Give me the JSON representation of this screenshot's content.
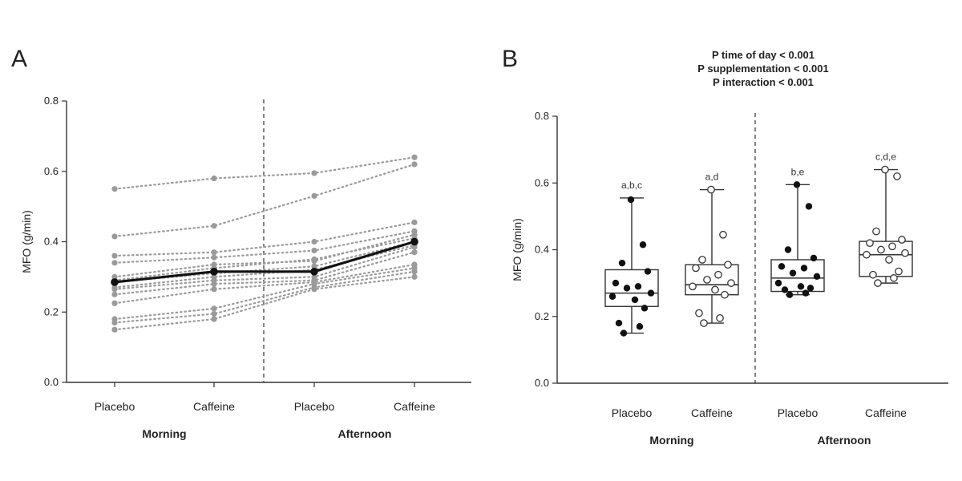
{
  "chart_data": [
    {
      "panel": "A",
      "type": "line",
      "ylabel": "MFO (g/min)",
      "ylim": [
        0.0,
        0.8
      ],
      "yticks": [
        "0.0",
        "0.2",
        "0.4",
        "0.6",
        "0.8"
      ],
      "categories": [
        "Placebo",
        "Caffeine",
        "Placebo",
        "Caffeine"
      ],
      "groups": [
        "Morning",
        "Afternoon"
      ],
      "mean_series": {
        "name": "Mean",
        "values": [
          0.285,
          0.315,
          0.315,
          0.4
        ]
      },
      "individual_series": [
        [
          0.55,
          0.58,
          0.595,
          0.64
        ],
        [
          0.415,
          0.445,
          0.53,
          0.62
        ],
        [
          0.36,
          0.37,
          0.4,
          0.455
        ],
        [
          0.34,
          0.355,
          0.375,
          0.43
        ],
        [
          0.3,
          0.335,
          0.345,
          0.42
        ],
        [
          0.29,
          0.325,
          0.35,
          0.41
        ],
        [
          0.285,
          0.31,
          0.33,
          0.4
        ],
        [
          0.27,
          0.3,
          0.32,
          0.39
        ],
        [
          0.265,
          0.29,
          0.3,
          0.385
        ],
        [
          0.25,
          0.28,
          0.29,
          0.37
        ],
        [
          0.225,
          0.265,
          0.285,
          0.335
        ],
        [
          0.18,
          0.21,
          0.28,
          0.325
        ],
        [
          0.17,
          0.195,
          0.27,
          0.315
        ],
        [
          0.15,
          0.18,
          0.265,
          0.3
        ]
      ]
    },
    {
      "panel": "B",
      "type": "box",
      "ylabel": "MFO (g/min)",
      "ylim": [
        0.0,
        0.8
      ],
      "yticks": [
        "0.0",
        "0.2",
        "0.4",
        "0.6",
        "0.8"
      ],
      "categories": [
        "Placebo",
        "Caffeine",
        "Placebo",
        "Caffeine"
      ],
      "groups": [
        "Morning",
        "Afternoon"
      ],
      "stats": [
        "P time of day < 0.001",
        "P supplementation < 0.001",
        "P interaction < 0.001"
      ],
      "boxes": [
        {
          "label": "Placebo",
          "group": "Morning",
          "annotation": "a,b,c",
          "filled": true,
          "min": 0.15,
          "q1": 0.23,
          "median": 0.27,
          "q3": 0.34,
          "max": 0.555,
          "points": [
            0.55,
            0.415,
            0.36,
            0.335,
            0.3,
            0.29,
            0.285,
            0.27,
            0.26,
            0.25,
            0.225,
            0.18,
            0.17,
            0.15
          ]
        },
        {
          "label": "Caffeine",
          "group": "Morning",
          "annotation": "a,d",
          "filled": false,
          "min": 0.18,
          "q1": 0.265,
          "median": 0.295,
          "q3": 0.355,
          "max": 0.58,
          "points": [
            0.58,
            0.445,
            0.37,
            0.355,
            0.345,
            0.325,
            0.31,
            0.3,
            0.29,
            0.28,
            0.265,
            0.21,
            0.195,
            0.18
          ]
        },
        {
          "label": "Placebo",
          "group": "Afternoon",
          "annotation": "b,e",
          "filled": true,
          "min": 0.265,
          "q1": 0.275,
          "median": 0.315,
          "q3": 0.37,
          "max": 0.595,
          "points": [
            0.595,
            0.53,
            0.4,
            0.375,
            0.35,
            0.345,
            0.33,
            0.32,
            0.3,
            0.29,
            0.285,
            0.28,
            0.27,
            0.265
          ]
        },
        {
          "label": "Caffeine",
          "group": "Afternoon",
          "annotation": "c,d,e",
          "filled": false,
          "min": 0.3,
          "q1": 0.32,
          "median": 0.385,
          "q3": 0.425,
          "max": 0.64,
          "points": [
            0.64,
            0.62,
            0.455,
            0.43,
            0.42,
            0.41,
            0.4,
            0.39,
            0.385,
            0.37,
            0.335,
            0.325,
            0.315,
            0.3
          ]
        }
      ]
    }
  ],
  "colors": {
    "axis": "#333333",
    "individual": "#9a9a9a",
    "mean": "#111111",
    "box_stroke": "#333333",
    "filled_point": "#111111",
    "open_point_fill": "#ffffff"
  }
}
